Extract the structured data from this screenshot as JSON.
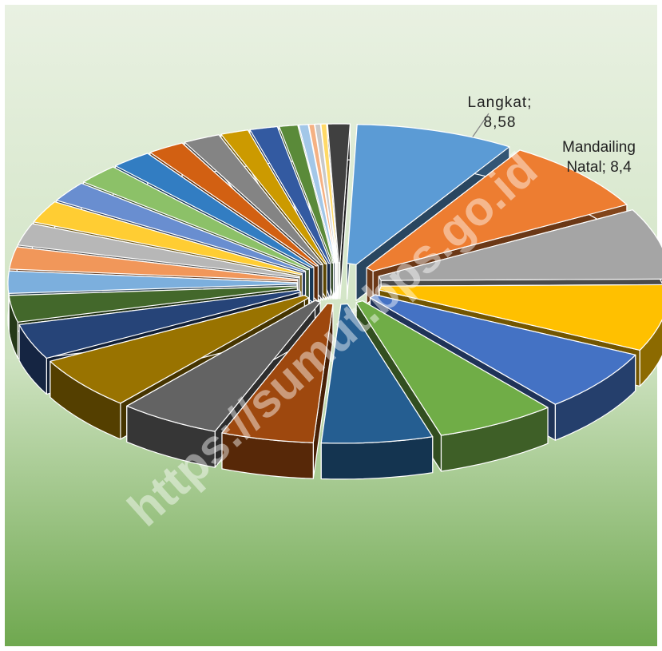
{
  "chart_data": {
    "type": "pie3d",
    "values": [
      8.58,
      8.4,
      8,
      7.5,
      7,
      6.5,
      6,
      5,
      5.5,
      6,
      4,
      3,
      2.5,
      2.5,
      2.5,
      2.5,
      2.3,
      2.3,
      2.2,
      2,
      2,
      1.5,
      1.5,
      1,
      0.5,
      0.3,
      0.3,
      0.3,
      1.2
    ],
    "value_labels": [
      "Langkat;\n8,58",
      "Mandailing\nNatal; 8,4",
      null,
      null,
      null,
      null,
      null,
      null,
      null,
      null,
      null,
      null,
      null,
      null,
      null,
      null,
      null,
      null,
      null,
      null,
      null,
      null,
      null,
      null,
      null,
      null,
      null,
      null,
      null
    ],
    "colors": [
      "#5b9bd5",
      "#ed7d31",
      "#a5a5a5",
      "#ffc000",
      "#4472c4",
      "#70ad47",
      "#255e91",
      "#9e480e",
      "#636363",
      "#997300",
      "#264478",
      "#43682b",
      "#7cafdd",
      "#f1975a",
      "#b7b7b7",
      "#ffcd33",
      "#698ed0",
      "#8cc168",
      "#327dc2",
      "#d26012",
      "#848484",
      "#cc9a00",
      "#335aa1",
      "#5a8a39",
      "#a3c7e8",
      "#f5b183",
      "#c9c9c9",
      "#ffd966",
      "#404040"
    ]
  },
  "watermark": "https://sumut.bps.go.id"
}
